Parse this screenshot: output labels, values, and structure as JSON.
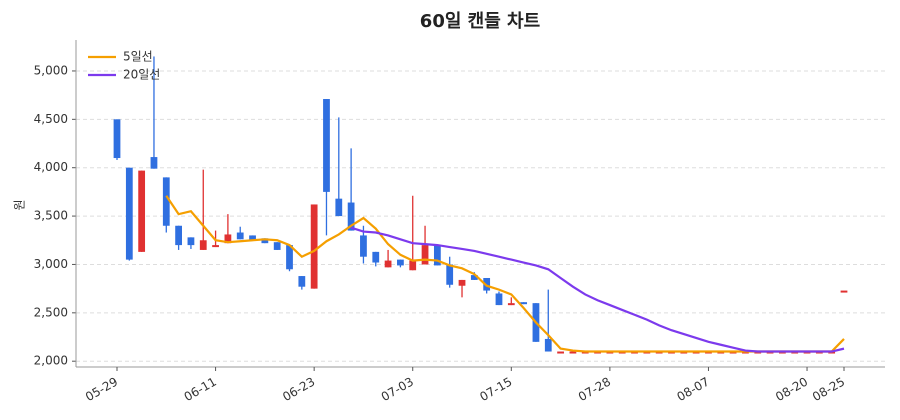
{
  "chart_data": {
    "type": "candlestick",
    "title": "60일 캔들 차트",
    "y_label": "원",
    "categories": [
      "05-29",
      null,
      null,
      null,
      null,
      null,
      null,
      null,
      "06-11",
      null,
      null,
      null,
      null,
      null,
      null,
      null,
      "06-23",
      null,
      null,
      null,
      null,
      null,
      null,
      null,
      "07-03",
      null,
      null,
      null,
      null,
      null,
      null,
      null,
      "07-15",
      null,
      null,
      null,
      null,
      null,
      null,
      null,
      "07-28",
      null,
      null,
      null,
      null,
      null,
      null,
      null,
      "08-07",
      null,
      null,
      null,
      null,
      null,
      null,
      null,
      "08-20",
      null,
      null,
      "08-25"
    ],
    "open": [
      4500,
      4000,
      3130,
      4110,
      3900,
      3400,
      3280,
      3150,
      3180,
      3220,
      3330,
      3300,
      3270,
      3230,
      3200,
      2880,
      2750,
      4710,
      3680,
      3640,
      3300,
      3130,
      2970,
      3050,
      2940,
      3000,
      3200,
      3000,
      2780,
      2890,
      2860,
      2700,
      2580,
      2610,
      2600,
      2230,
      2100,
      2100,
      2100,
      2100,
      2100,
      2100,
      2100,
      2100,
      2100,
      2100,
      2100,
      2100,
      2100,
      2100,
      2100,
      2100,
      2100,
      2100,
      2100,
      2100,
      2100,
      2100,
      2100,
      2730
    ],
    "high": [
      4500,
      4000,
      3970,
      5150,
      3900,
      3400,
      3280,
      3980,
      3350,
      3520,
      3390,
      3300,
      3270,
      3230,
      3200,
      2880,
      3620,
      4710,
      4520,
      4200,
      3400,
      3130,
      3150,
      3050,
      3710,
      3400,
      3200,
      3080,
      2840,
      2920,
      2860,
      2720,
      2660,
      2610,
      2600,
      2740,
      2100,
      2100,
      2100,
      2100,
      2100,
      2100,
      2100,
      2100,
      2100,
      2100,
      2100,
      2100,
      2100,
      2100,
      2100,
      2100,
      2100,
      2100,
      2100,
      2100,
      2100,
      2100,
      2100,
      2730
    ],
    "low": [
      4080,
      3040,
      3130,
      3990,
      3330,
      3150,
      3160,
      3150,
      3180,
      3220,
      3260,
      3250,
      3220,
      3150,
      2930,
      2740,
      2750,
      3300,
      3500,
      3350,
      3010,
      2980,
      2970,
      2970,
      2940,
      3000,
      2990,
      2760,
      2660,
      2840,
      2700,
      2580,
      2580,
      2590,
      2200,
      2100,
      2100,
      2100,
      2100,
      2100,
      2100,
      2100,
      2100,
      2100,
      2100,
      2100,
      2100,
      2100,
      2100,
      2100,
      2100,
      2100,
      2100,
      2100,
      2100,
      2100,
      2100,
      2100,
      2100,
      2730
    ],
    "close": [
      4100,
      3050,
      3970,
      3990,
      3400,
      3200,
      3200,
      3250,
      3200,
      3310,
      3260,
      3250,
      3220,
      3150,
      2950,
      2770,
      3620,
      3750,
      3500,
      3350,
      3080,
      3020,
      3040,
      2990,
      3040,
      3200,
      2990,
      2790,
      2840,
      2840,
      2730,
      2580,
      2600,
      2590,
      2200,
      2100,
      2100,
      2100,
      2100,
      2100,
      2100,
      2100,
      2100,
      2100,
      2100,
      2100,
      2100,
      2100,
      2100,
      2100,
      2100,
      2100,
      2100,
      2100,
      2100,
      2100,
      2100,
      2100,
      2100,
      2730
    ],
    "up_color": "#e03131",
    "down_color": "#2f6fe0",
    "lines": [
      {
        "name": "5일선",
        "color": "#f59f00",
        "values": [
          null,
          null,
          null,
          null,
          3710,
          3520,
          3550,
          3400,
          3250,
          3230,
          3240,
          3250,
          3260,
          3250,
          3200,
          3080,
          3140,
          3240,
          3310,
          3400,
          3480,
          3370,
          3210,
          3100,
          3040,
          3050,
          3040,
          2990,
          2960,
          2900,
          2780,
          2740,
          2690,
          2550,
          2400,
          2270,
          2130,
          2110,
          2100,
          2100,
          2100,
          2100,
          2100,
          2100,
          2100,
          2100,
          2100,
          2100,
          2100,
          2100,
          2100,
          2100,
          2100,
          2100,
          2100,
          2100,
          2100,
          2100,
          2100,
          2230
        ]
      },
      {
        "name": "20일선",
        "color": "#7c3aed",
        "values": [
          null,
          null,
          null,
          null,
          null,
          null,
          null,
          null,
          null,
          null,
          null,
          null,
          null,
          null,
          null,
          null,
          null,
          null,
          null,
          3380,
          3340,
          3330,
          3300,
          3260,
          3220,
          3210,
          3200,
          3180,
          3160,
          3140,
          3110,
          3080,
          3050,
          3020,
          2990,
          2950,
          2860,
          2770,
          2690,
          2630,
          2580,
          2530,
          2480,
          2430,
          2370,
          2320,
          2280,
          2240,
          2200,
          2170,
          2140,
          2110,
          2100,
          2100,
          2100,
          2100,
          2100,
          2100,
          2100,
          2130
        ]
      }
    ],
    "ylim": [
      1940,
      5320
    ],
    "yticks": [
      {
        "value": 2000,
        "label": "2,000"
      },
      {
        "value": 2500,
        "label": "2,500"
      },
      {
        "value": 3000,
        "label": "3,000"
      },
      {
        "value": 3500,
        "label": "3,500"
      },
      {
        "value": 4000,
        "label": "4,000"
      },
      {
        "value": 4500,
        "label": "4,500"
      },
      {
        "value": 5000,
        "label": "5,000"
      }
    ],
    "grid": true
  }
}
